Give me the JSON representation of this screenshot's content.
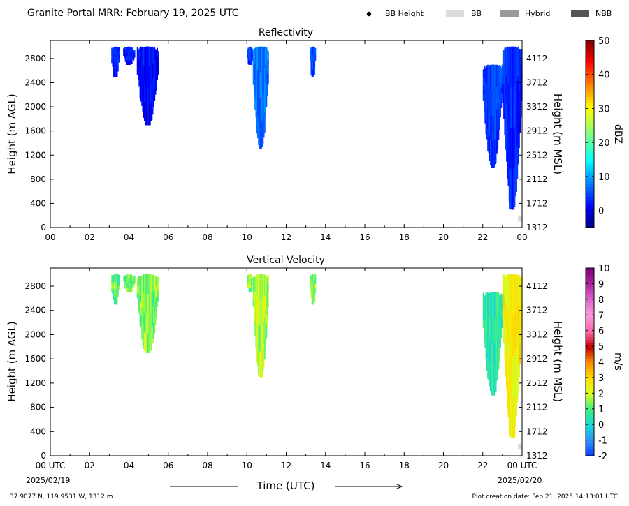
{
  "header": {
    "title": "Granite Portal MRR:  February 19, 2025 UTC",
    "legend": [
      {
        "label": "BB Height",
        "symbol": "dot",
        "color": "#000000"
      },
      {
        "label": "BB",
        "symbol": "box",
        "color": "#dcdcdc"
      },
      {
        "label": "Hybrid",
        "symbol": "box",
        "color": "#9a9a9a"
      },
      {
        "label": "NBB",
        "symbol": "box",
        "color": "#555555"
      }
    ]
  },
  "footer": {
    "location": "37.9077 N, 119.9531 W, 1312 m",
    "creation_date": "Plot creation date: Feb 21, 2025 14:13:01 UTC",
    "xlabel": "Time (UTC)",
    "start_date": "2025/02/19",
    "end_date": "2025/02/20"
  },
  "chart_data": [
    {
      "type": "heatmap",
      "title": "Reflectivity",
      "xlabel": "",
      "ylabel": "Height (m AGL)",
      "ylabel_right": "Height (m MSL)",
      "xlim": [
        0,
        24
      ],
      "ylim": [
        0,
        3100
      ],
      "x_ticks": [
        "00",
        "02",
        "04",
        "06",
        "08",
        "10",
        "12",
        "14",
        "16",
        "18",
        "20",
        "22",
        "00"
      ],
      "y_ticks": [
        0,
        400,
        800,
        1200,
        1600,
        2000,
        2400,
        2800
      ],
      "y_ticks_right": [
        1312,
        1712,
        2112,
        2512,
        2912,
        3312,
        3712,
        4112
      ],
      "colorbar": {
        "label": "dBZ",
        "min": -5,
        "max": 50,
        "ticks": [
          0,
          10,
          20,
          30,
          40,
          50
        ],
        "colormap": "jet"
      },
      "echoes": [
        {
          "t_start": 3.1,
          "t_end": 3.5,
          "base_m": 2500,
          "top_m": 3000,
          "value": 4
        },
        {
          "t_start": 3.7,
          "t_end": 4.3,
          "base_m": 2700,
          "top_m": 3000,
          "value": 3
        },
        {
          "t_start": 4.4,
          "t_end": 5.5,
          "base_m": 1700,
          "top_m": 3000,
          "value": 2
        },
        {
          "t_start": 10.0,
          "t_end": 10.3,
          "base_m": 2700,
          "top_m": 3000,
          "value": 5
        },
        {
          "t_start": 10.3,
          "t_end": 11.1,
          "base_m": 1300,
          "top_m": 3000,
          "value": 8
        },
        {
          "t_start": 13.2,
          "t_end": 13.5,
          "base_m": 2500,
          "top_m": 3000,
          "value": 6
        },
        {
          "t_start": 22.0,
          "t_end": 23.0,
          "base_m": 1000,
          "top_m": 2700,
          "value": 5
        },
        {
          "t_start": 23.0,
          "t_end": 24.0,
          "base_m": 300,
          "top_m": 3000,
          "value": 4
        }
      ],
      "bright_band": [
        {
          "t": 23.9,
          "height_m": 100,
          "type": "BB"
        }
      ]
    },
    {
      "type": "heatmap",
      "title": "Vertical Velocity",
      "xlabel": "Time (UTC)",
      "ylabel": "Height (m AGL)",
      "ylabel_right": "Height (m MSL)",
      "xlim": [
        0,
        24
      ],
      "ylim": [
        0,
        3100
      ],
      "x_ticks": [
        "00 UTC",
        "02",
        "04",
        "06",
        "08",
        "10",
        "12",
        "14",
        "16",
        "18",
        "20",
        "22",
        "00 UTC"
      ],
      "y_ticks": [
        0,
        400,
        800,
        1200,
        1600,
        2000,
        2400,
        2800
      ],
      "y_ticks_right": [
        1312,
        1712,
        2112,
        2512,
        2912,
        3312,
        3712,
        4112
      ],
      "colorbar": {
        "label": "m/s",
        "min": -2,
        "max": 10,
        "ticks": [
          -2,
          -1,
          0,
          1,
          2,
          3,
          4,
          5,
          6,
          7,
          8,
          9,
          10
        ],
        "colormap": "velocity"
      },
      "echoes": [
        {
          "t_start": 3.1,
          "t_end": 3.5,
          "base_m": 2500,
          "top_m": 3000,
          "value": 1.2
        },
        {
          "t_start": 3.7,
          "t_end": 4.3,
          "base_m": 2700,
          "top_m": 3000,
          "value": 1.3
        },
        {
          "t_start": 4.4,
          "t_end": 5.5,
          "base_m": 1700,
          "top_m": 3000,
          "value": 1.4
        },
        {
          "t_start": 10.0,
          "t_end": 10.3,
          "base_m": 2700,
          "top_m": 3000,
          "value": 1.5
        },
        {
          "t_start": 10.3,
          "t_end": 11.1,
          "base_m": 1300,
          "top_m": 3000,
          "value": 1.8
        },
        {
          "t_start": 13.2,
          "t_end": 13.5,
          "base_m": 2500,
          "top_m": 3000,
          "value": 1.3
        },
        {
          "t_start": 22.0,
          "t_end": 23.0,
          "base_m": 1000,
          "top_m": 2700,
          "value": 0.5
        },
        {
          "t_start": 23.0,
          "t_end": 24.0,
          "base_m": 300,
          "top_m": 3000,
          "value": 2.5
        }
      ],
      "bright_band": [
        {
          "t": 23.9,
          "height_m": 100,
          "type": "BB"
        }
      ]
    }
  ]
}
